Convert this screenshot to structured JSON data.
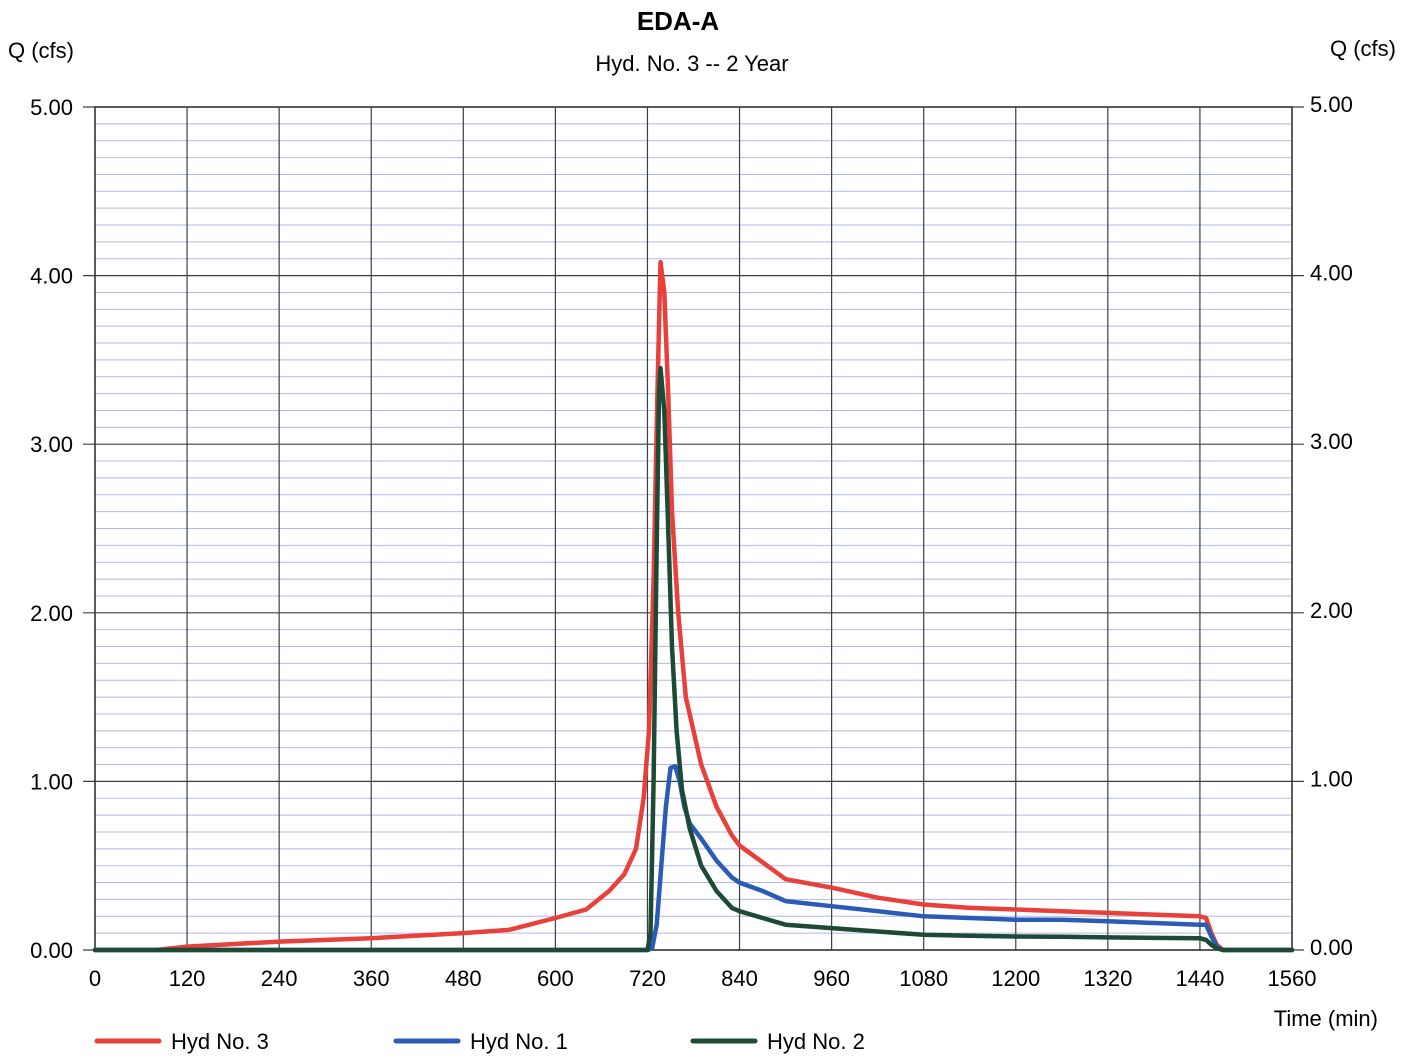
{
  "chart_data": {
    "type": "line",
    "title": "EDA-A",
    "subtitle": "Hyd. No. 3 -- 2 Year",
    "ylabel_left": "Q (cfs)",
    "ylabel_right": "Q (cfs)",
    "xlabel": "Time (min)",
    "xlim": [
      0,
      1560
    ],
    "ylim": [
      0,
      5
    ],
    "x_ticks": [
      0,
      120,
      240,
      360,
      480,
      600,
      720,
      840,
      960,
      1080,
      1200,
      1320,
      1440,
      1560
    ],
    "x_tick_labels": [
      "0",
      "120",
      "240",
      "360",
      "480",
      "600",
      "720",
      "840",
      "960",
      "1080",
      "1200",
      "1320",
      "1440",
      "1560"
    ],
    "y_ticks": [
      0,
      1,
      2,
      3,
      4,
      5
    ],
    "y_tick_labels": [
      "0.00",
      "1.00",
      "2.00",
      "3.00",
      "4.00",
      "5.00"
    ],
    "grid": true,
    "minor_y_step": 0.1,
    "legend_position": "bottom",
    "series": [
      {
        "name": "Hyd No. 3",
        "color": "#e8403a",
        "points": [
          [
            0,
            0
          ],
          [
            80,
            0
          ],
          [
            120,
            0.02
          ],
          [
            240,
            0.05
          ],
          [
            360,
            0.07
          ],
          [
            480,
            0.1
          ],
          [
            540,
            0.12
          ],
          [
            600,
            0.19
          ],
          [
            640,
            0.24
          ],
          [
            670,
            0.35
          ],
          [
            690,
            0.45
          ],
          [
            705,
            0.6
          ],
          [
            715,
            0.9
          ],
          [
            722,
            1.3
          ],
          [
            728,
            2.2
          ],
          [
            733,
            3.3
          ],
          [
            737,
            4.08
          ],
          [
            742,
            3.9
          ],
          [
            747,
            3.3
          ],
          [
            752,
            2.6
          ],
          [
            760,
            2.0
          ],
          [
            770,
            1.5
          ],
          [
            790,
            1.1
          ],
          [
            810,
            0.85
          ],
          [
            830,
            0.68
          ],
          [
            840,
            0.62
          ],
          [
            870,
            0.52
          ],
          [
            900,
            0.42
          ],
          [
            960,
            0.37
          ],
          [
            1020,
            0.31
          ],
          [
            1080,
            0.27
          ],
          [
            1140,
            0.25
          ],
          [
            1200,
            0.24
          ],
          [
            1260,
            0.23
          ],
          [
            1320,
            0.22
          ],
          [
            1380,
            0.21
          ],
          [
            1440,
            0.2
          ],
          [
            1448,
            0.19
          ],
          [
            1455,
            0.1
          ],
          [
            1462,
            0.03
          ],
          [
            1470,
            0
          ],
          [
            1560,
            0
          ]
        ]
      },
      {
        "name": "Hyd No. 1",
        "color": "#2a5cb5",
        "points": [
          [
            0,
            0
          ],
          [
            720,
            0
          ],
          [
            726,
            0.01
          ],
          [
            732,
            0.15
          ],
          [
            738,
            0.5
          ],
          [
            744,
            0.85
          ],
          [
            750,
            1.08
          ],
          [
            756,
            1.09
          ],
          [
            762,
            1.0
          ],
          [
            768,
            0.85
          ],
          [
            775,
            0.75
          ],
          [
            790,
            0.66
          ],
          [
            810,
            0.53
          ],
          [
            830,
            0.43
          ],
          [
            840,
            0.4
          ],
          [
            870,
            0.35
          ],
          [
            900,
            0.29
          ],
          [
            960,
            0.26
          ],
          [
            1020,
            0.23
          ],
          [
            1080,
            0.2
          ],
          [
            1140,
            0.19
          ],
          [
            1200,
            0.18
          ],
          [
            1260,
            0.18
          ],
          [
            1320,
            0.17
          ],
          [
            1380,
            0.16
          ],
          [
            1440,
            0.15
          ],
          [
            1448,
            0.15
          ],
          [
            1455,
            0.08
          ],
          [
            1462,
            0.02
          ],
          [
            1470,
            0
          ],
          [
            1560,
            0
          ]
        ]
      },
      {
        "name": "Hyd No. 2",
        "color": "#1c4a34",
        "points": [
          [
            0,
            0
          ],
          [
            720,
            0
          ],
          [
            724,
            0.1
          ],
          [
            728,
            1.0
          ],
          [
            732,
            2.4
          ],
          [
            735,
            3.3
          ],
          [
            737,
            3.45
          ],
          [
            742,
            3.2
          ],
          [
            747,
            2.5
          ],
          [
            752,
            1.8
          ],
          [
            758,
            1.3
          ],
          [
            765,
            0.95
          ],
          [
            775,
            0.72
          ],
          [
            790,
            0.5
          ],
          [
            810,
            0.35
          ],
          [
            830,
            0.25
          ],
          [
            840,
            0.23
          ],
          [
            870,
            0.19
          ],
          [
            900,
            0.15
          ],
          [
            960,
            0.13
          ],
          [
            1020,
            0.11
          ],
          [
            1080,
            0.09
          ],
          [
            1140,
            0.085
          ],
          [
            1200,
            0.08
          ],
          [
            1260,
            0.078
          ],
          [
            1320,
            0.075
          ],
          [
            1380,
            0.072
          ],
          [
            1440,
            0.07
          ],
          [
            1448,
            0.06
          ],
          [
            1455,
            0.03
          ],
          [
            1462,
            0.01
          ],
          [
            1470,
            0
          ],
          [
            1560,
            0
          ]
        ]
      }
    ]
  }
}
